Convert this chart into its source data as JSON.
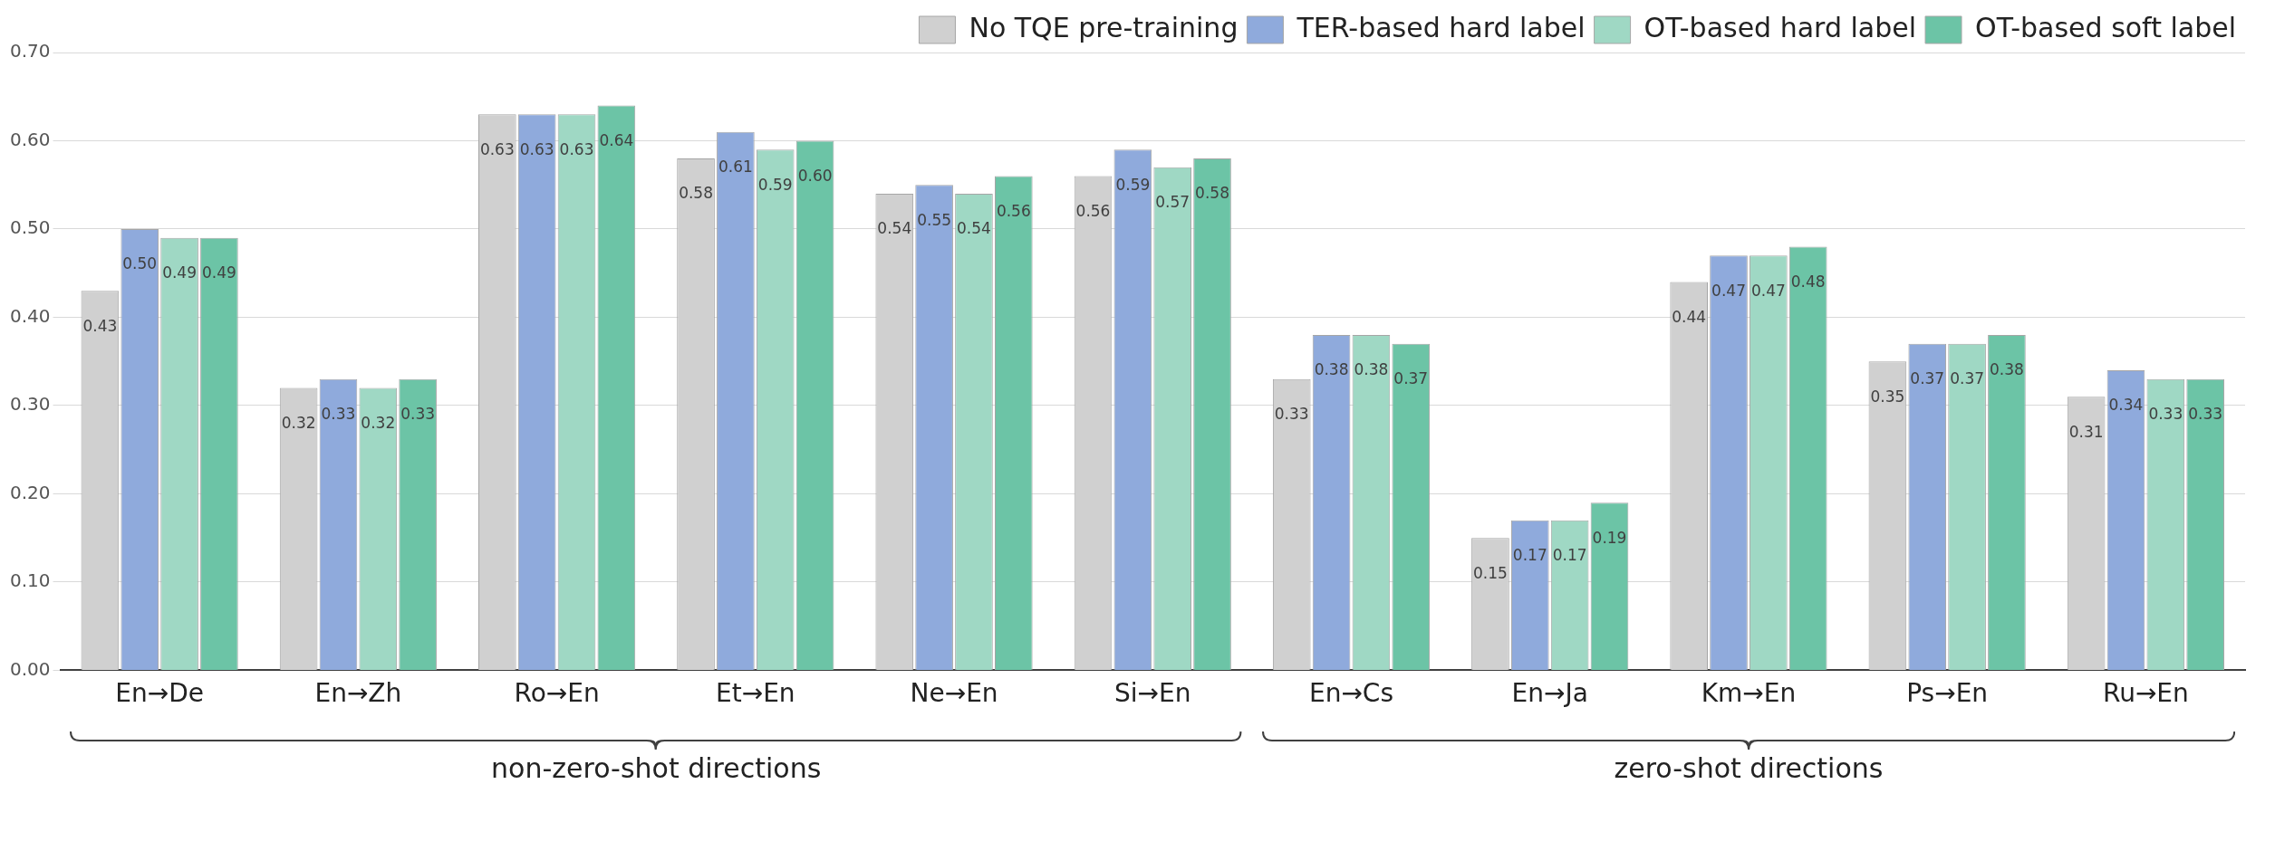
{
  "chart_data": {
    "type": "bar",
    "categories": [
      "En→De",
      "En→Zh",
      "Ro→En",
      "Et→En",
      "Ne→En",
      "Si→En",
      "En→Cs",
      "En→Ja",
      "Km→En",
      "Ps→En",
      "Ru→En"
    ],
    "series": [
      {
        "name": "No TQE pre-training",
        "color": "#d0d0d0",
        "values": [
          0.43,
          0.32,
          0.63,
          0.58,
          0.54,
          0.56,
          0.33,
          0.15,
          0.44,
          0.35,
          0.31
        ],
        "value_labels": [
          "0.43",
          "0.32",
          "0.63",
          "0.58",
          "0.54",
          "0.56",
          "0.33",
          "0.15",
          "0.44",
          "0.35",
          "0.31"
        ]
      },
      {
        "name": "TER-based hard label",
        "color": "#8faadc",
        "values": [
          0.5,
          0.33,
          0.63,
          0.61,
          0.55,
          0.59,
          0.38,
          0.17,
          0.47,
          0.37,
          0.34
        ],
        "value_labels": [
          "0.50",
          "0.33",
          "0.63",
          "0.61",
          "0.55",
          "0.59",
          "0.38",
          "0.17",
          "0.47",
          "0.37",
          "0.34"
        ]
      },
      {
        "name": "OT-based hard label",
        "color": "#9fd8c4",
        "values": [
          0.49,
          0.32,
          0.63,
          0.59,
          0.54,
          0.57,
          0.38,
          0.17,
          0.47,
          0.37,
          0.33
        ],
        "value_labels": [
          "0.49",
          "0.32",
          "0.63",
          "0.59",
          "0.54",
          "0.57",
          "0.38",
          "0.17",
          "0.47",
          "0.37",
          "0.33"
        ]
      },
      {
        "name": "OT-based soft label",
        "color": "#6cc4a6",
        "values": [
          0.49,
          0.33,
          0.64,
          0.6,
          0.56,
          0.58,
          0.37,
          0.19,
          0.48,
          0.38,
          0.33
        ],
        "value_labels": [
          "0.49",
          "0.33",
          "0.64",
          "0.60",
          "0.56",
          "0.58",
          "0.37",
          "0.19",
          "0.48",
          "0.38",
          "0.33"
        ]
      }
    ],
    "ylim": [
      0,
      0.7
    ],
    "yticks": [
      {
        "value": 0,
        "label": "0.00"
      },
      {
        "value": 0.1,
        "label": "0.10"
      },
      {
        "value": 0.2,
        "label": "0.20"
      },
      {
        "value": 0.3,
        "label": "0.30"
      },
      {
        "value": 0.4,
        "label": "0.40"
      },
      {
        "value": 0.5,
        "label": "0.50"
      },
      {
        "value": 0.6,
        "label": "0.60"
      },
      {
        "value": 0.7,
        "label": "0.70"
      }
    ],
    "grid": "y",
    "legend": "top right",
    "annotations": [
      "non-zero-shot directions",
      "zero-shot directions"
    ]
  }
}
